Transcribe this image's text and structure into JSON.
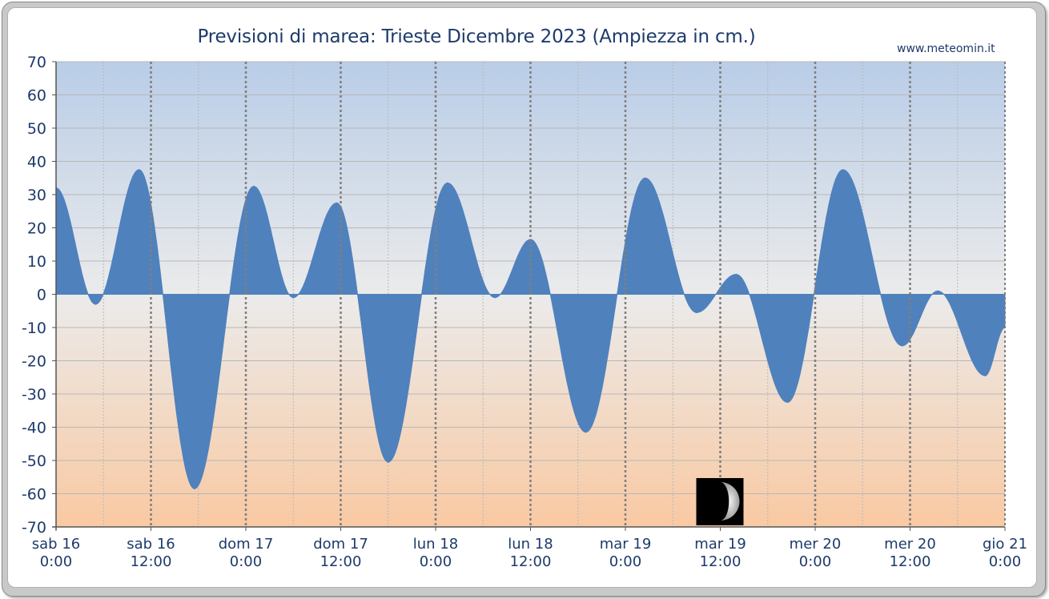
{
  "chart_data": {
    "type": "area",
    "title": "Previsioni di marea: Trieste Dicembre 2023 (Ampiezza in cm.)",
    "source_label": "www.meteomin.it",
    "ylim": [
      -70,
      70
    ],
    "y_ticks": [
      70,
      60,
      50,
      40,
      30,
      20,
      10,
      0,
      -10,
      -20,
      -30,
      -40,
      -50,
      -60,
      -70
    ],
    "x_unit": "hours",
    "xlim": [
      0,
      120
    ],
    "x_ticks": [
      {
        "h": 0,
        "day": "sab  16",
        "time": "0:00"
      },
      {
        "h": 12,
        "day": "sab  16",
        "time": "12:00"
      },
      {
        "h": 24,
        "day": "dom  17",
        "time": "0:00"
      },
      {
        "h": 36,
        "day": "dom  17",
        "time": "12:00"
      },
      {
        "h": 48,
        "day": "lun  18",
        "time": "0:00"
      },
      {
        "h": 60,
        "day": "lun  18",
        "time": "12:00"
      },
      {
        "h": 72,
        "day": "mar  19",
        "time": "0:00"
      },
      {
        "h": 84,
        "day": "mar  19",
        "time": "12:00"
      },
      {
        "h": 96,
        "day": "mer  20",
        "time": "0:00"
      },
      {
        "h": 108,
        "day": "mer  20",
        "time": "12:00"
      },
      {
        "h": 120,
        "day": "gio  21",
        "time": "0:00"
      }
    ],
    "series": [
      {
        "points": [
          [
            0,
            32
          ],
          [
            5,
            -3
          ],
          [
            10.5,
            37.5
          ],
          [
            17.5,
            -58.5
          ],
          [
            25,
            32.5
          ],
          [
            30,
            -1
          ],
          [
            35.5,
            27.5
          ],
          [
            42,
            -50.5
          ],
          [
            49.5,
            33.5
          ],
          [
            55.5,
            -1
          ],
          [
            60,
            16.5
          ],
          [
            67,
            -41.5
          ],
          [
            74.5,
            35
          ],
          [
            81,
            -5.5
          ],
          [
            86,
            6
          ],
          [
            92.5,
            -32.5
          ],
          [
            99.5,
            37.5
          ],
          [
            107,
            -15.5
          ],
          [
            111.5,
            1
          ],
          [
            117.5,
            -24.5
          ],
          [
            120,
            -10
          ]
        ]
      }
    ],
    "moon_phase_icon": "crescent-moon-icon",
    "moon_phase_h": 84,
    "grid": true,
    "colors": {
      "fill": "#4f81bd",
      "bg_top": "#b9cde7",
      "bg_mid": "#ebebeb",
      "bg_bottom": "#f9c9a2",
      "grid": "#b8b8b8",
      "major_grid": "#7f7f7f",
      "text": "#1d3a6b"
    }
  }
}
